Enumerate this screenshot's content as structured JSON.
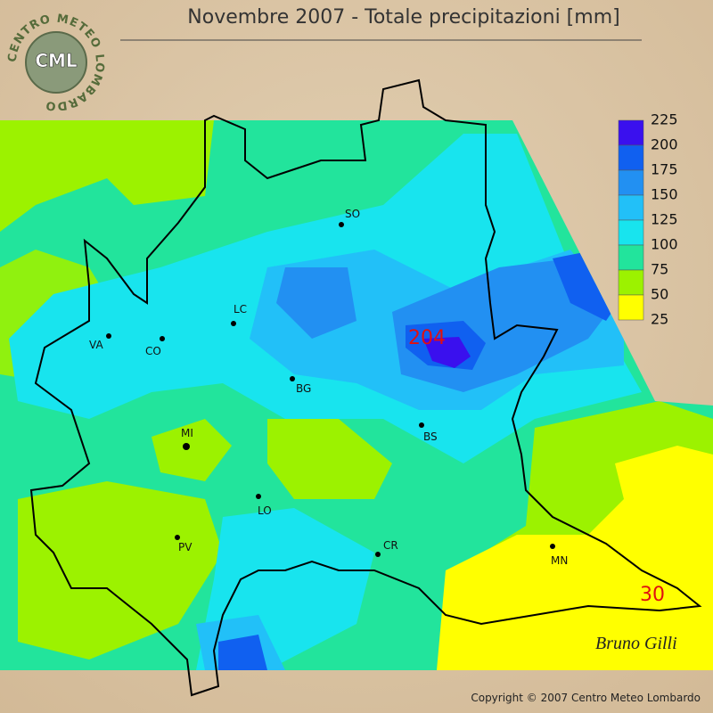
{
  "title": "Novembre 2007 - Totale precipitazioni [mm]",
  "logo": {
    "ring": "CENTRO METEO LOMBARDO",
    "initials": "CML"
  },
  "legend": {
    "labels": [
      225,
      200,
      175,
      150,
      125,
      100,
      75,
      50,
      25
    ],
    "colors": [
      "#3a10ee",
      "#1060f0",
      "#2290f2",
      "#22c0f8",
      "#18e4ee",
      "#22e49c",
      "#9cf200",
      "#ffff00"
    ]
  },
  "cities": [
    "SO",
    "LC",
    "VA",
    "CO",
    "BG",
    "BS",
    "MI",
    "LO",
    "PV",
    "CR",
    "MN"
  ],
  "annotations": {
    "max": "204",
    "min": "30"
  },
  "signature": "Bruno Gilli",
  "copyright": "Copyright © 2007 Centro Meteo Lombardo"
}
